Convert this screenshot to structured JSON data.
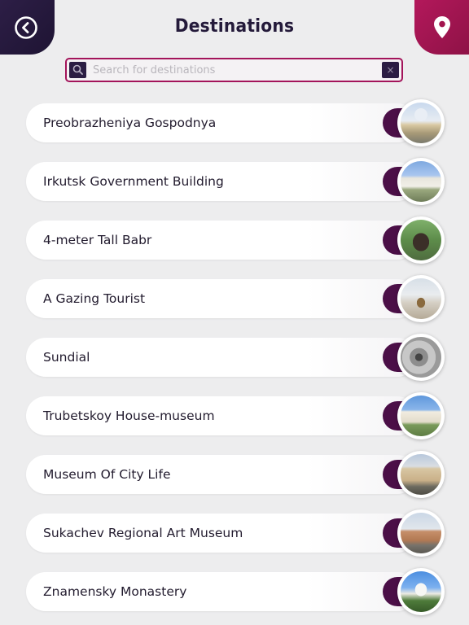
{
  "header": {
    "title": "Destinations"
  },
  "search": {
    "placeholder": "Search for destinations",
    "value": "",
    "clear_label": "×"
  },
  "destinations": [
    {
      "name": "Preobrazheniya Gospodnya",
      "thumb": "church-photo"
    },
    {
      "name": "Irkutsk Government Building",
      "thumb": "government-building-photo"
    },
    {
      "name": "4-meter Tall Babr",
      "thumb": "babr-statue-photo"
    },
    {
      "name": "A Gazing Tourist",
      "thumb": "tourist-statue-photo"
    },
    {
      "name": "Sundial",
      "thumb": "sundial-photo"
    },
    {
      "name": "Trubetskoy House-museum",
      "thumb": "house-museum-photo"
    },
    {
      "name": "Museum Of City Life",
      "thumb": "city-life-museum-photo"
    },
    {
      "name": "Sukachev Regional Art Museum",
      "thumb": "art-museum-photo"
    },
    {
      "name": "Znamensky Monastery",
      "thumb": "monastery-photo"
    }
  ],
  "colors": {
    "back_button": "#2d1e46",
    "map_button": "#b3185b",
    "search_border": "#a3145a",
    "item_tab": "#4b0f47",
    "background": "#ededee"
  }
}
